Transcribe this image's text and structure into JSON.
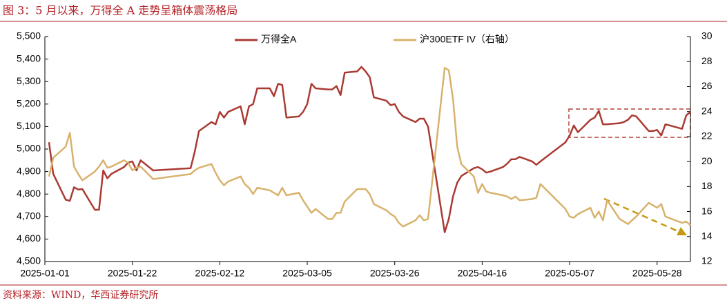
{
  "chart_data": {
    "type": "line",
    "title": "图 3：5 月以来，万得全 A 走势呈箱体震荡格局",
    "source": "资料来源：WIND，华西证券研究所",
    "legend": "top",
    "x": [
      "2025-01-02",
      "2025-01-03",
      "2025-01-06",
      "2025-01-07",
      "2025-01-08",
      "2025-01-09",
      "2025-01-10",
      "2025-01-13",
      "2025-01-14",
      "2025-01-15",
      "2025-01-16",
      "2025-01-17",
      "2025-01-20",
      "2025-01-21",
      "2025-01-22",
      "2025-01-23",
      "2025-01-24",
      "2025-01-27",
      "2025-02-05",
      "2025-02-06",
      "2025-02-07",
      "2025-02-10",
      "2025-02-11",
      "2025-02-12",
      "2025-02-13",
      "2025-02-14",
      "2025-02-17",
      "2025-02-18",
      "2025-02-19",
      "2025-02-20",
      "2025-02-21",
      "2025-02-24",
      "2025-02-25",
      "2025-02-26",
      "2025-02-27",
      "2025-02-28",
      "2025-03-03",
      "2025-03-04",
      "2025-03-05",
      "2025-03-06",
      "2025-03-07",
      "2025-03-10",
      "2025-03-11",
      "2025-03-12",
      "2025-03-13",
      "2025-03-14",
      "2025-03-17",
      "2025-03-18",
      "2025-03-19",
      "2025-03-20",
      "2025-03-21",
      "2025-03-24",
      "2025-03-25",
      "2025-03-26",
      "2025-03-27",
      "2025-03-28",
      "2025-03-31",
      "2025-04-01",
      "2025-04-02",
      "2025-04-03",
      "2025-04-07",
      "2025-04-08",
      "2025-04-09",
      "2025-04-10",
      "2025-04-11",
      "2025-04-14",
      "2025-04-15",
      "2025-04-16",
      "2025-04-17",
      "2025-04-18",
      "2025-04-21",
      "2025-04-22",
      "2025-04-23",
      "2025-04-24",
      "2025-04-25",
      "2025-04-28",
      "2025-04-29",
      "2025-04-30",
      "2025-05-06",
      "2025-05-07",
      "2025-05-08",
      "2025-05-09",
      "2025-05-12",
      "2025-05-13",
      "2025-05-14",
      "2025-05-15",
      "2025-05-16",
      "2025-05-19",
      "2025-05-20",
      "2025-05-21",
      "2025-05-22",
      "2025-05-23",
      "2025-05-26",
      "2025-05-27",
      "2025-05-28",
      "2025-05-29",
      "2025-05-30",
      "2025-06-03",
      "2025-06-04",
      "2025-06-05"
    ],
    "series": [
      {
        "name": "万得全A",
        "color": "#a93a32",
        "values": [
          5030,
          4890,
          4775,
          4770,
          4830,
          4820,
          4822,
          4730,
          4730,
          4905,
          4870,
          4890,
          4920,
          4940,
          4945,
          4905,
          4950,
          4905,
          4915,
          4990,
          5080,
          5120,
          5110,
          5165,
          5140,
          5165,
          5190,
          5110,
          5190,
          5200,
          5270,
          5270,
          5235,
          5290,
          5285,
          5140,
          5145,
          5165,
          5200,
          5290,
          5270,
          5265,
          5265,
          5280,
          5240,
          5340,
          5345,
          5365,
          5345,
          5320,
          5230,
          5215,
          5195,
          5200,
          5165,
          5145,
          5120,
          5135,
          5135,
          5100,
          4630,
          4690,
          4790,
          4850,
          4880,
          4915,
          4920,
          4910,
          4895,
          4900,
          4920,
          4935,
          4955,
          4955,
          4965,
          4945,
          4930,
          4945,
          5030,
          5060,
          5105,
          5075,
          5130,
          5140,
          5170,
          5110,
          5110,
          5115,
          5120,
          5130,
          5150,
          5145,
          5080,
          5080,
          5085,
          5060,
          5110,
          5090,
          5150,
          5165
        ]
      },
      {
        "name": "沪300ETF IV（右轴）",
        "color": "#d8b26c",
        "axis": "y2",
        "values": [
          18.8,
          20.3,
          21.2,
          22.3,
          19.6,
          19.0,
          18.5,
          19.2,
          19.6,
          20.1,
          19.5,
          19.6,
          20.1,
          19.9,
          19.3,
          19.5,
          19.6,
          18.6,
          19.0,
          19.3,
          19.5,
          19.8,
          19.1,
          18.5,
          18.1,
          18.4,
          18.8,
          18.2,
          17.9,
          17.4,
          17.9,
          17.7,
          17.5,
          17.3,
          17.9,
          17.3,
          17.5,
          16.9,
          16.4,
          15.9,
          16.2,
          15.4,
          15.4,
          15.9,
          15.9,
          16.8,
          17.8,
          17.8,
          17.8,
          17.4,
          16.6,
          16.1,
          15.8,
          15.6,
          15.1,
          14.8,
          15.3,
          15.7,
          15.3,
          15.4,
          27.5,
          27.3,
          25.0,
          21.2,
          19.8,
          18.8,
          17.5,
          18.2,
          17.6,
          17.5,
          17.3,
          17.2,
          17.0,
          17.2,
          16.9,
          17.0,
          17.1,
          18.2,
          16.2,
          15.6,
          15.5,
          15.8,
          16.3,
          15.5,
          16.0,
          15.3,
          16.9,
          15.4,
          15.2,
          15.0,
          15.3,
          15.6,
          16.7,
          16.5,
          16.3,
          16.6,
          15.6,
          15.1,
          15.2,
          14.9
        ]
      }
    ],
    "xlim": [
      "2025-01-01",
      "2025-06-05"
    ],
    "xticks": [
      "2025-01-01",
      "2025-01-22",
      "2025-02-12",
      "2025-03-05",
      "2025-03-26",
      "2025-04-16",
      "2025-05-07",
      "2025-05-28"
    ],
    "ylim": [
      4500,
      5500
    ],
    "yticks": [
      {
        "value": 4500,
        "label": "4,500"
      },
      {
        "value": 4600,
        "label": "4,600"
      },
      {
        "value": 4700,
        "label": "4,700"
      },
      {
        "value": 4800,
        "label": "4,800"
      },
      {
        "value": 4900,
        "label": "4,900"
      },
      {
        "value": 5000,
        "label": "5,000"
      },
      {
        "value": 5100,
        "label": "5,100"
      },
      {
        "value": 5200,
        "label": "5,200"
      },
      {
        "value": 5300,
        "label": "5,300"
      },
      {
        "value": 5400,
        "label": "5,400"
      },
      {
        "value": 5500,
        "label": "5,500"
      }
    ],
    "y2lim": [
      12,
      30
    ],
    "y2ticks": [
      12,
      14,
      16,
      18,
      20,
      22,
      24,
      26,
      28,
      30
    ]
  }
}
